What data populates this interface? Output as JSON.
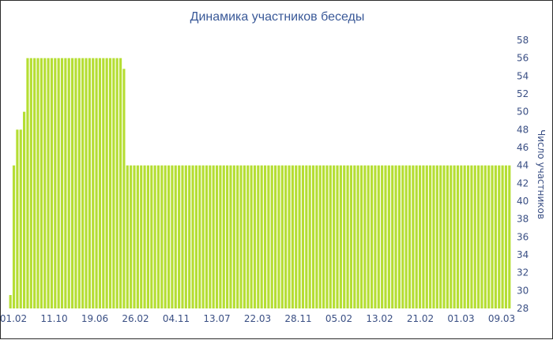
{
  "chart_data": {
    "type": "bar",
    "title": "Динамика участников беседы",
    "ylabel": "Число участников",
    "xlabel": "",
    "ylim": [
      28,
      58
    ],
    "yticks": [
      28,
      30,
      32,
      34,
      36,
      38,
      40,
      42,
      44,
      46,
      48,
      50,
      52,
      54,
      56,
      58
    ],
    "xtick_labels": [
      "01.02",
      "11.10",
      "19.06",
      "26.02",
      "04.11",
      "13.07",
      "22.03",
      "28.11",
      "05.02",
      "13.02",
      "21.02",
      "01.03",
      "09.03"
    ],
    "grid": "horizontal bands",
    "y_axis_side": "right",
    "colors": {
      "bar": "#b5de33",
      "band": "#f4f4f4",
      "text": "#3a4f84"
    },
    "values": [
      29.5,
      44,
      48,
      48,
      50,
      56,
      56,
      56,
      56,
      56,
      56,
      56,
      56,
      56,
      56,
      56,
      56,
      56,
      56,
      56,
      56,
      56,
      56,
      56,
      56,
      56,
      56,
      56,
      56,
      56,
      56,
      56,
      56,
      54.8,
      44,
      44,
      44,
      44,
      44,
      44,
      44,
      44,
      44,
      44,
      44,
      44,
      44,
      44,
      44,
      44,
      44,
      44,
      44,
      44,
      44,
      44,
      44,
      44,
      44,
      44,
      44,
      44,
      44,
      44,
      44,
      44,
      44,
      44,
      44,
      44,
      44,
      44,
      44,
      44,
      44,
      44,
      44,
      44,
      44,
      44,
      44,
      44,
      44,
      44,
      44,
      44,
      44,
      44,
      44,
      44,
      44,
      44,
      44,
      44,
      44,
      44,
      44,
      44,
      44,
      44,
      44,
      44,
      44,
      44,
      44,
      44,
      44,
      44,
      44,
      44,
      44,
      44,
      44,
      44,
      44,
      44,
      44,
      44,
      44,
      44,
      44,
      44,
      44,
      44,
      44,
      44,
      44,
      44,
      44,
      44,
      44,
      44,
      44,
      44,
      44,
      44,
      44,
      44,
      44,
      44,
      44,
      44,
      44,
      44,
      44,
      44
    ]
  }
}
